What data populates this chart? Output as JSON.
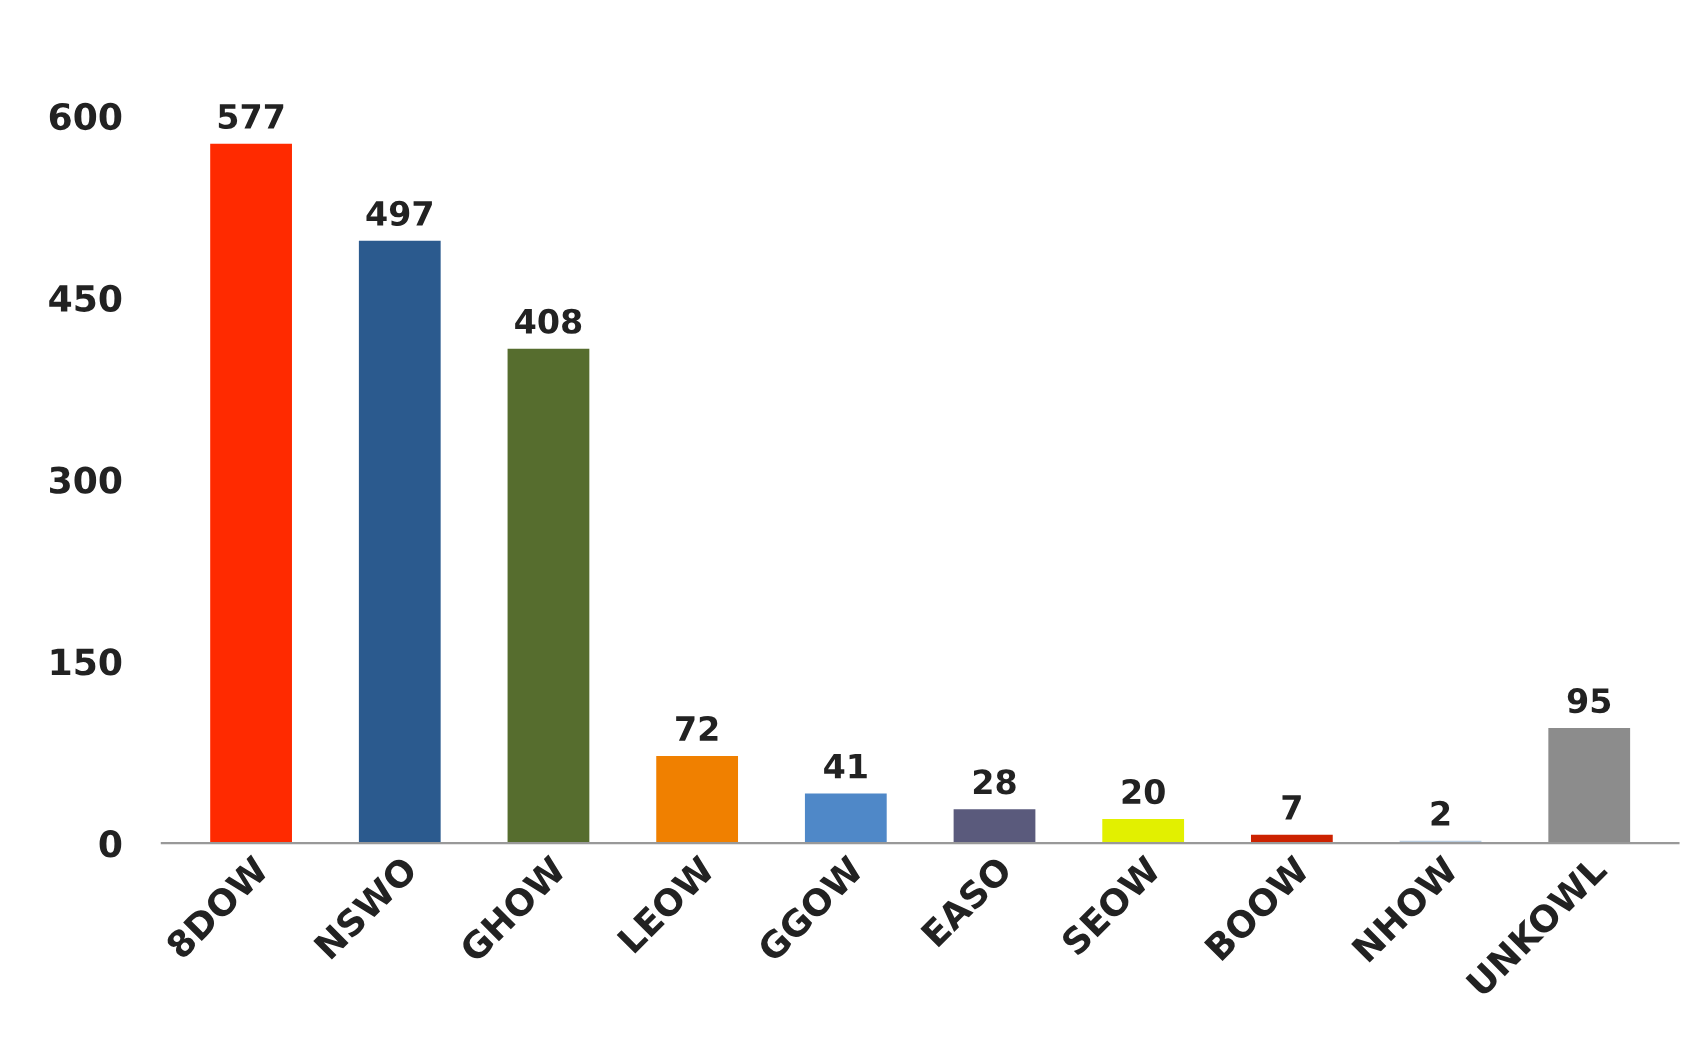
{
  "chart_data": {
    "type": "bar",
    "categories": [
      "8DOW",
      "NSWO",
      "GHOW",
      "LEOW",
      "GGOW",
      "EASO",
      "SEOW",
      "BOOW",
      "NHOW",
      "UNKOWL"
    ],
    "values": [
      577,
      497,
      408,
      72,
      41,
      28,
      20,
      7,
      2,
      95
    ],
    "colors": [
      "#ff2a00",
      "#2b5a8e",
      "#566d2e",
      "#f08000",
      "#4f88c8",
      "#5a5a7c",
      "#e2f000",
      "#cc2200",
      "#b8cce0",
      "#8c8c8c"
    ],
    "ylim": [
      0,
      600
    ],
    "yticks": [
      0,
      150,
      300,
      450,
      600
    ],
    "grid": false,
    "data_labels": true
  }
}
